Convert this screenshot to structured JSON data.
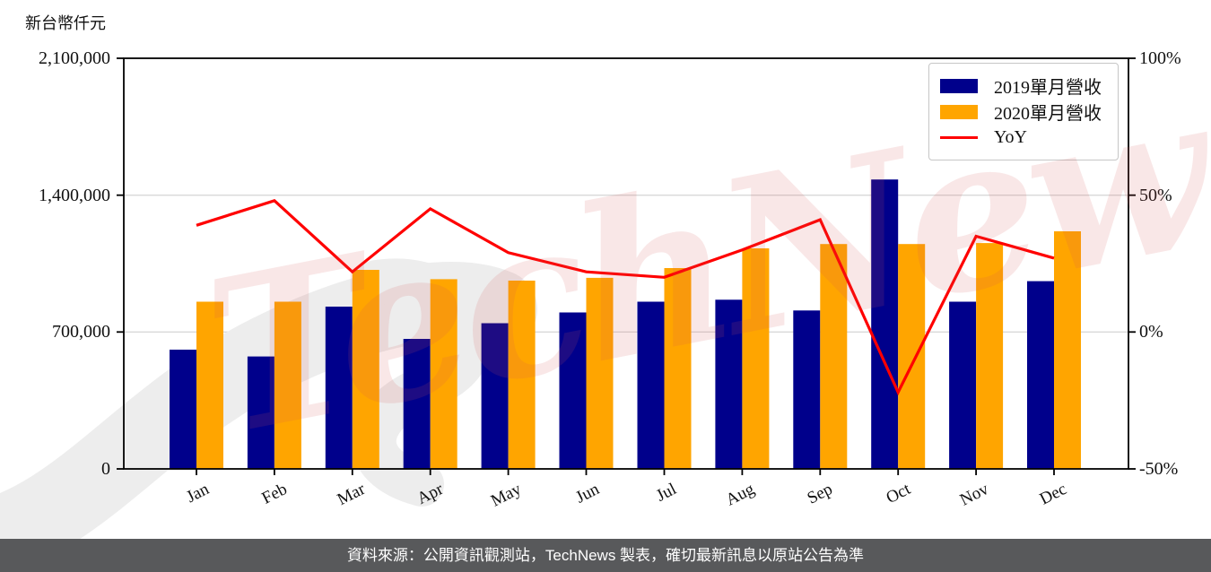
{
  "page": {
    "watermark": {
      "text": "TechNews",
      "color": "#d65252"
    },
    "footer": {
      "text": "資料來源：公開資訊觀測站，TechNews 製表，確切最新訊息以原站公告為準",
      "bg": "#58595b",
      "color": "#ffffff"
    }
  },
  "chart_data": {
    "type": "bar",
    "subtype": "grouped-bars-with-yoy-line",
    "title": "",
    "unit_label": "新台幣仟元",
    "categories": [
      "Jan",
      "Feb",
      "Mar",
      "Apr",
      "May",
      "Jun",
      "Jul",
      "Aug",
      "Sep",
      "Oct",
      "Nov",
      "Dec"
    ],
    "series": [
      {
        "name": "2019單月營收",
        "type": "bar",
        "axis": "left",
        "color": "#00008B",
        "values": [
          610000,
          575000,
          830000,
          665000,
          745000,
          800000,
          855000,
          865000,
          810000,
          1480000,
          855000,
          960000
        ]
      },
      {
        "name": "2020單月營收",
        "type": "bar",
        "axis": "left",
        "color": "#FFA500",
        "values": [
          855000,
          855000,
          1018000,
          970000,
          963000,
          977000,
          1027000,
          1128000,
          1150000,
          1150000,
          1155000,
          1215000
        ]
      },
      {
        "name": "YoY",
        "type": "line",
        "axis": "right",
        "unit": "%",
        "color": "#FF0000",
        "values": [
          39,
          48,
          22,
          45,
          29,
          22,
          20,
          30,
          41,
          -22,
          35,
          27
        ]
      }
    ],
    "left_axis": {
      "min": 0,
      "max": 2100000,
      "ticks": [
        {
          "value": 0,
          "label": "0"
        },
        {
          "value": 700000,
          "label": "700,000"
        },
        {
          "value": 1400000,
          "label": "1,400,000"
        },
        {
          "value": 2100000,
          "label": "2,100,000"
        }
      ]
    },
    "right_axis": {
      "min": -50,
      "max": 100,
      "ticks": [
        {
          "value": -50,
          "label": "-50%"
        },
        {
          "value": 0,
          "label": "0%"
        },
        {
          "value": 50,
          "label": "50%"
        },
        {
          "value": 100,
          "label": "100%"
        }
      ]
    },
    "legend_position": "top-right",
    "grid": "horizontal",
    "grid_color": "#d9d9d9"
  }
}
